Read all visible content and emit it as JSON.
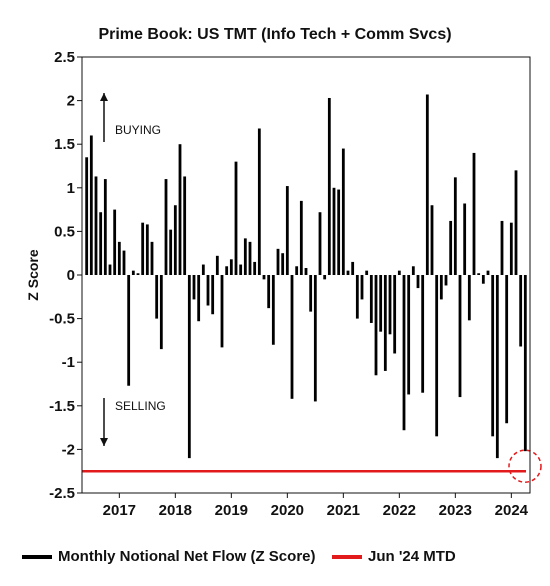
{
  "chart_data": {
    "type": "bar",
    "title": "Prime Book: US TMT (Info Tech + Comm Svcs)",
    "ylabel": "Z Score",
    "ylim": [
      -2.5,
      2.5
    ],
    "yticks": [
      2.5,
      2,
      1.5,
      1,
      0.5,
      0,
      -0.5,
      -1,
      -1.5,
      -2,
      -2.5
    ],
    "xticks": [
      "2017",
      "2018",
      "2019",
      "2020",
      "2021",
      "2022",
      "2023",
      "2024"
    ],
    "x_start": "2016-06",
    "series": [
      {
        "name": "Monthly Notional Net Flow (Z Score)",
        "color": "#000000",
        "values": [
          1.35,
          1.6,
          1.13,
          0.72,
          1.1,
          0.12,
          0.75,
          0.38,
          0.28,
          -1.27,
          0.05,
          0.02,
          0.6,
          0.58,
          0.38,
          -0.5,
          -0.85,
          1.1,
          0.52,
          0.8,
          1.5,
          1.13,
          -2.1,
          -0.28,
          -0.53,
          0.12,
          -0.35,
          -0.45,
          0.22,
          -0.83,
          0.1,
          0.18,
          1.3,
          0.12,
          0.42,
          0.38,
          0.15,
          1.68,
          -0.05,
          -0.38,
          -0.8,
          0.3,
          0.25,
          1.02,
          -1.42,
          0.1,
          0.85,
          0.08,
          -0.42,
          -1.45,
          0.72,
          -0.05,
          2.03,
          1.0,
          0.98,
          1.45,
          0.05,
          0.15,
          -0.5,
          -0.28,
          0.05,
          -0.55,
          -1.15,
          -0.65,
          -1.1,
          -0.68,
          -0.9,
          0.05,
          -1.78,
          -1.37,
          0.1,
          -0.15,
          -1.35,
          2.07,
          0.8,
          -1.85,
          -0.28,
          -0.12,
          0.62,
          1.12,
          -1.4,
          0.82,
          -0.52,
          1.4,
          0.02,
          -0.1,
          0.05,
          -1.85,
          -2.1,
          0.62,
          -1.7,
          0.6,
          1.2,
          -0.82,
          -2.02
        ]
      }
    ],
    "reference_line": {
      "label": "Jun '24 MTD",
      "value": -2.25,
      "color": "#e31a1c"
    },
    "annotations": {
      "upper": "BUYING",
      "lower": "SELLING"
    }
  }
}
